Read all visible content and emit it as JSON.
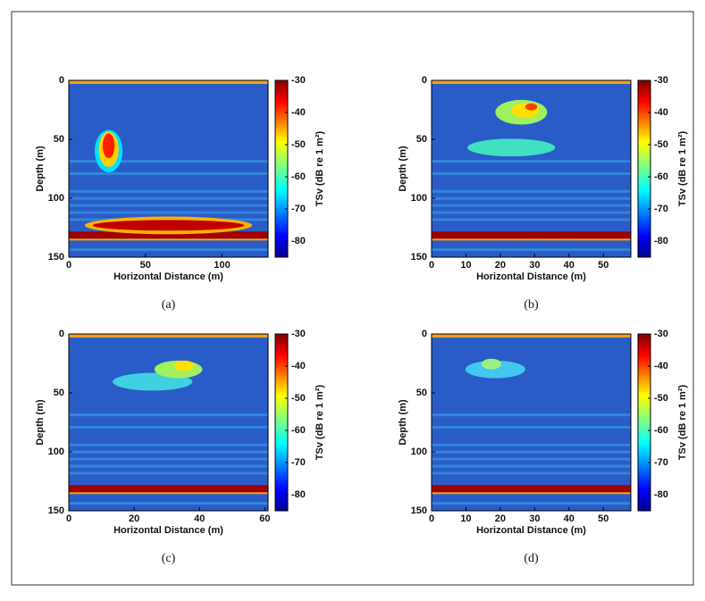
{
  "chart_data": [
    {
      "type": "echogram",
      "caption": "(a)",
      "xlabel": "Horizontal Distance (m)",
      "ylabel": "Depth (m)",
      "xlim": [
        0,
        130
      ],
      "xticks": [
        0,
        50,
        100
      ],
      "ylim": [
        0,
        150
      ],
      "yticks": [
        0,
        50,
        100,
        150
      ],
      "y_inverted": true,
      "colorbar": {
        "label": "TSv (dB re 1 m²)",
        "clim": [
          -85,
          -30
        ],
        "ticks": [
          -30,
          -40,
          -50,
          -60,
          -70,
          -80
        ]
      }
    },
    {
      "type": "echogram",
      "caption": "(b)",
      "xlabel": "Horizontal Distance (m)",
      "ylabel": "Depth (m)",
      "xlim": [
        0,
        58
      ],
      "xticks": [
        0,
        10,
        20,
        30,
        40,
        50
      ],
      "ylim": [
        0,
        150
      ],
      "yticks": [
        0,
        50,
        100,
        150
      ],
      "y_inverted": true,
      "colorbar": {
        "label": "TSv (dB re 1 m²)",
        "clim": [
          -85,
          -30
        ],
        "ticks": [
          -30,
          -40,
          -50,
          -60,
          -70,
          -80
        ]
      }
    },
    {
      "type": "echogram",
      "caption": "(c)",
      "xlabel": "Horizontal Distance (m)",
      "ylabel": "Depth (m)",
      "xlim": [
        0,
        61
      ],
      "xticks": [
        0,
        20,
        40,
        60
      ],
      "ylim": [
        0,
        150
      ],
      "yticks": [
        0,
        50,
        100,
        150
      ],
      "y_inverted": true,
      "colorbar": {
        "label": "TSv (dB re 1 m²)",
        "clim": [
          -85,
          -30
        ],
        "ticks": [
          -30,
          -40,
          -50,
          -60,
          -70,
          -80
        ]
      }
    },
    {
      "type": "echogram",
      "caption": "(d)",
      "xlabel": "Horizontal Distance (m)",
      "ylabel": "Depth (m)",
      "xlim": [
        0,
        58
      ],
      "xticks": [
        0,
        10,
        20,
        30,
        40,
        50
      ],
      "ylim": [
        0,
        150
      ],
      "yticks": [
        0,
        50,
        100,
        150
      ],
      "y_inverted": true,
      "colorbar": {
        "label": "TSv (dB re 1 m²)",
        "clim": [
          -85,
          -30
        ],
        "ticks": [
          -30,
          -40,
          -50,
          -60,
          -70,
          -80
        ]
      }
    }
  ]
}
